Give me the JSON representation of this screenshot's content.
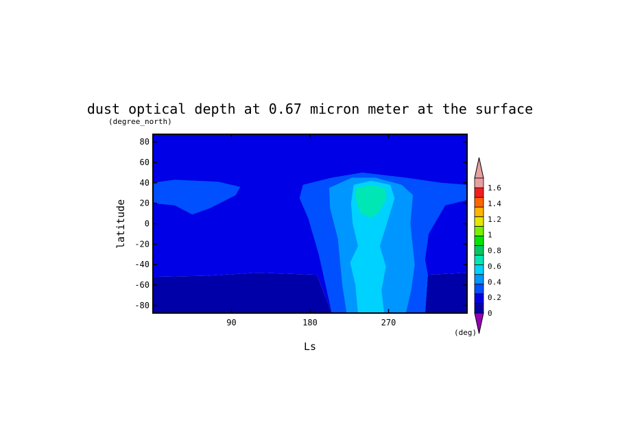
{
  "chart_data": {
    "type": "heatmap",
    "title": "dust optical depth at 0.67 micron meter at the surface",
    "xlabel": "Ls",
    "ylabel": "latitude",
    "y_unit": "(degree_north)",
    "colorbar_unit": "(deg)",
    "xlim": [
      0,
      360
    ],
    "ylim": [
      -87.5,
      87.5
    ],
    "x_ticks": [
      90,
      180,
      270
    ],
    "y_ticks": [
      80,
      60,
      40,
      20,
      0,
      -20,
      -40,
      -60,
      -80
    ],
    "colorbar": {
      "levels": [
        0,
        0.2,
        0.4,
        0.6,
        0.8,
        1,
        1.2,
        1.4,
        1.6
      ],
      "tick_labels": [
        "0",
        "0.2",
        "0.4",
        "0.6",
        "0.8",
        "1",
        "1.2",
        "1.4",
        "1.6"
      ],
      "colors": [
        "#0000a8",
        "#0000e6",
        "#0050ff",
        "#0096ff",
        "#00d2ff",
        "#00e6b4",
        "#00c864",
        "#00e600",
        "#78f000",
        "#e6e600",
        "#ffb400",
        "#ff6400",
        "#f01e1e",
        "#e6a0a0"
      ],
      "under_color": "#9600b4",
      "over_color": "#e6a0a0"
    },
    "regions": [
      {
        "level": "0-0.1",
        "color": "#0000a8",
        "polygon": [
          [
            0,
            -87.5
          ],
          [
            360,
            -87.5
          ],
          [
            360,
            -48
          ],
          [
            315,
            -50
          ],
          [
            312,
            -87.5
          ],
          [
            205,
            -87.5
          ],
          [
            188,
            -50
          ],
          [
            120,
            -48
          ],
          [
            60,
            -51
          ],
          [
            0,
            -52
          ]
        ]
      },
      {
        "level": "0.1-0.2",
        "color": "#0000e6",
        "polygon": [
          [
            0,
            -52
          ],
          [
            60,
            -51
          ],
          [
            120,
            -48
          ],
          [
            188,
            -50
          ],
          [
            205,
            -87.5
          ],
          [
            312,
            -87.5
          ],
          [
            315,
            -50
          ],
          [
            360,
            -48
          ],
          [
            360,
            87.5
          ],
          [
            0,
            87.5
          ]
        ]
      },
      {
        "level": "0.2-0.3",
        "color": "#0050ff",
        "polygon": [
          [
            0,
            40
          ],
          [
            25,
            43
          ],
          [
            75,
            41
          ],
          [
            100,
            36
          ],
          [
            95,
            28
          ],
          [
            65,
            15
          ],
          [
            45,
            9
          ],
          [
            25,
            18
          ],
          [
            0,
            20
          ]
        ]
      },
      {
        "level": "0.2-0.3",
        "color": "#0050ff",
        "polygon": [
          [
            205,
            -87.5
          ],
          [
            190,
            -30
          ],
          [
            178,
            5
          ],
          [
            168,
            25
          ],
          [
            172,
            38
          ],
          [
            205,
            45
          ],
          [
            240,
            50
          ],
          [
            290,
            45
          ],
          [
            330,
            40
          ],
          [
            360,
            38
          ],
          [
            360,
            23
          ],
          [
            335,
            18
          ],
          [
            316,
            -10
          ],
          [
            312,
            -35
          ],
          [
            315,
            -50
          ],
          [
            312,
            -87.5
          ]
        ]
      },
      {
        "level": "0.3-0.4",
        "color": "#0096ff",
        "polygon": [
          [
            222,
            -87.5
          ],
          [
            217,
            -60
          ],
          [
            212,
            -15
          ],
          [
            203,
            15
          ],
          [
            202,
            35
          ],
          [
            228,
            45
          ],
          [
            255,
            45
          ],
          [
            285,
            38
          ],
          [
            298,
            28
          ],
          [
            295,
            0
          ],
          [
            300,
            -40
          ],
          [
            296,
            -65
          ],
          [
            290,
            -87.5
          ]
        ]
      },
      {
        "level": "0.4-0.5",
        "color": "#00d2ff",
        "polygon": [
          [
            235,
            -87.5
          ],
          [
            232,
            -60
          ],
          [
            226,
            -38
          ],
          [
            235,
            -22
          ],
          [
            229,
            0
          ],
          [
            227,
            20
          ],
          [
            230,
            38
          ],
          [
            250,
            42
          ],
          [
            272,
            38
          ],
          [
            277,
            25
          ],
          [
            268,
            0
          ],
          [
            260,
            -22
          ],
          [
            267,
            -42
          ],
          [
            262,
            -65
          ],
          [
            265,
            -87.5
          ]
        ]
      },
      {
        "level": "0.5-0.6",
        "color": "#00e6b4",
        "polygon": [
          [
            238,
            10
          ],
          [
            232,
            25
          ],
          [
            233,
            35
          ],
          [
            250,
            38
          ],
          [
            266,
            35
          ],
          [
            268,
            25
          ],
          [
            258,
            10
          ],
          [
            249,
            6
          ]
        ]
      }
    ]
  }
}
